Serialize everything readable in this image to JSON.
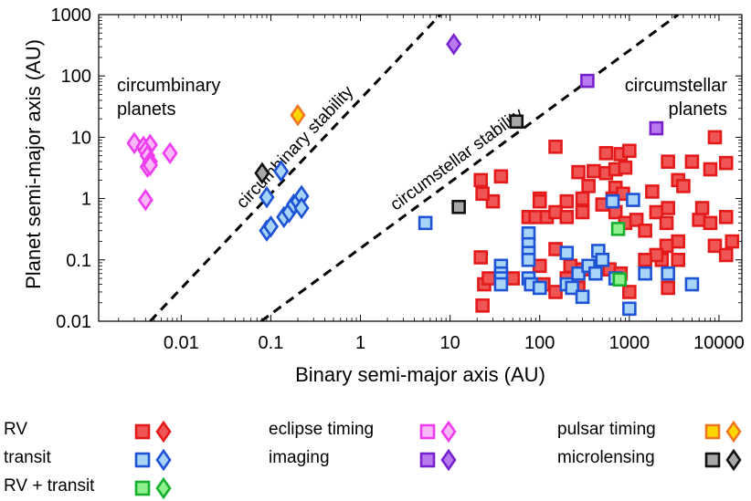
{
  "chart_data": {
    "type": "scatter",
    "xlabel": "Binary semi-major axis (AU)",
    "ylabel": "Planet semi-major axis (AU)",
    "xscale": "log",
    "yscale": "log",
    "xlim": [
      0.0012,
      18000
    ],
    "ylim": [
      0.01,
      1000
    ],
    "xticks": [
      {
        "value": 0.01,
        "label": "0.01"
      },
      {
        "value": 0.1,
        "label": "0.1"
      },
      {
        "value": 1,
        "label": "1"
      },
      {
        "value": 10,
        "label": "10"
      },
      {
        "value": 100,
        "label": "100"
      },
      {
        "value": 1000,
        "label": "1000"
      },
      {
        "value": 10000,
        "label": "10000"
      }
    ],
    "yticks": [
      {
        "value": 0.01,
        "label": "0.01"
      },
      {
        "value": 0.1,
        "label": "0.1"
      },
      {
        "value": 1,
        "label": "1"
      },
      {
        "value": 10,
        "label": "10"
      },
      {
        "value": 100,
        "label": "100"
      },
      {
        "value": 1000,
        "label": "1000"
      }
    ],
    "stability_lines": [
      {
        "name": "circumbinary stability",
        "label": "circumbinary stability",
        "points": [
          [
            0.0045,
            0.01
          ],
          [
            7.8,
            1000
          ]
        ]
      },
      {
        "name": "circumstellar stability",
        "label": "circumstellar stability",
        "points": [
          [
            0.078,
            0.01
          ],
          [
            3500,
            1000
          ]
        ]
      }
    ],
    "region_labels": [
      {
        "text_lines": [
          "circumbinary",
          "planets"
        ],
        "x": 0.0025,
        "y": 60
      },
      {
        "text_lines": [
          "circumstellar",
          "planets"
        ],
        "x": 2500,
        "y": 60
      }
    ],
    "series": [
      {
        "name": "RV circumstellar",
        "method": "RV",
        "marker": "square",
        "fill": "#f05555",
        "edge": "#e41a1a",
        "points": [
          [
            9000,
            10
          ],
          [
            12000,
            3.8
          ],
          [
            550,
            5.5
          ],
          [
            800,
            5.3
          ],
          [
            1000,
            6
          ],
          [
            150,
            7
          ],
          [
            270,
            2.7
          ],
          [
            400,
            2.8
          ],
          [
            550,
            2.6
          ],
          [
            700,
            3
          ],
          [
            900,
            3.2
          ],
          [
            2700,
            4
          ],
          [
            5000,
            4
          ],
          [
            8000,
            3
          ],
          [
            3500,
            2
          ],
          [
            4000,
            1.6
          ],
          [
            1800,
            1.3
          ],
          [
            350,
            1.6
          ],
          [
            300,
            1
          ],
          [
            700,
            1.5
          ],
          [
            200,
            0.9
          ],
          [
            100,
            1
          ],
          [
            650,
            1
          ],
          [
            850,
            1.2
          ],
          [
            100,
            0.9
          ],
          [
            22,
            2
          ],
          [
            37,
            2.3
          ],
          [
            30,
            0.9
          ],
          [
            23,
            1.2
          ],
          [
            75,
            0.5
          ],
          [
            90,
            0.5
          ],
          [
            120,
            0.5
          ],
          [
            150,
            0.6
          ],
          [
            200,
            0.5
          ],
          [
            300,
            0.6
          ],
          [
            500,
            0.8
          ],
          [
            700,
            0.6
          ],
          [
            900,
            0.4
          ],
          [
            1200,
            0.45
          ],
          [
            1500,
            0.3
          ],
          [
            2000,
            0.6
          ],
          [
            2600,
            0.4
          ],
          [
            2700,
            0.7
          ],
          [
            6000,
            0.45
          ],
          [
            6500,
            0.7
          ],
          [
            12000,
            0.5
          ],
          [
            9000,
            0.17
          ],
          [
            12000,
            0.12
          ],
          [
            3500,
            0.2
          ],
          [
            2600,
            0.17
          ],
          [
            2300,
            0.1
          ],
          [
            2000,
            0.12
          ],
          [
            1500,
            0.1
          ],
          [
            22,
            0.11
          ],
          [
            150,
            0.15
          ],
          [
            100,
            0.08
          ],
          [
            220,
            0.08
          ],
          [
            300,
            0.07
          ],
          [
            450,
            0.08
          ],
          [
            600,
            0.07
          ],
          [
            800,
            0.06
          ],
          [
            1000,
            0.03
          ],
          [
            200,
            0.05
          ],
          [
            150,
            0.03
          ],
          [
            50,
            0.05
          ],
          [
            110,
            0.04
          ],
          [
            270,
            0.035
          ],
          [
            23,
            0.018
          ],
          [
            24,
            0.04
          ],
          [
            27,
            0.05
          ],
          [
            2700,
            0.035
          ],
          [
            3500,
            0.1
          ],
          [
            8000,
            0.4
          ],
          [
            14000,
            0.2
          ]
        ]
      },
      {
        "name": "transit circumstellar",
        "method": "transit",
        "marker": "square",
        "fill": "#a8d4f8",
        "edge": "#1f53d6",
        "points": [
          [
            5.3,
            0.4
          ],
          [
            1100,
            0.95
          ],
          [
            650,
            0.9
          ],
          [
            75,
            0.27
          ],
          [
            75,
            0.18
          ],
          [
            75,
            0.13
          ],
          [
            75,
            0.1
          ],
          [
            200,
            0.13
          ],
          [
            450,
            0.14
          ],
          [
            37,
            0.08
          ],
          [
            37,
            0.06
          ],
          [
            37,
            0.05
          ],
          [
            37,
            0.04
          ],
          [
            75,
            0.05
          ],
          [
            80,
            0.04
          ],
          [
            100,
            0.035
          ],
          [
            200,
            0.04
          ],
          [
            230,
            0.035
          ],
          [
            270,
            0.06
          ],
          [
            300,
            0.025
          ],
          [
            350,
            0.08
          ],
          [
            420,
            0.06
          ],
          [
            500,
            0.1
          ],
          [
            700,
            0.05
          ],
          [
            1000,
            0.016
          ],
          [
            1500,
            0.06
          ],
          [
            2700,
            0.06
          ],
          [
            5000,
            0.04
          ]
        ]
      },
      {
        "name": "RV + transit circumstellar",
        "method": "RV + transit",
        "marker": "square",
        "fill": "#8ef08e",
        "edge": "#17b02e",
        "points": [
          [
            750,
            0.32
          ],
          [
            780,
            0.048
          ]
        ]
      },
      {
        "name": "imaging circumstellar",
        "method": "imaging",
        "marker": "square",
        "fill": "#b97af0",
        "edge": "#7722cc",
        "points": [
          [
            340,
            83
          ],
          [
            2000,
            14
          ]
        ]
      },
      {
        "name": "microlensing circumstellar",
        "method": "microlensing",
        "marker": "square",
        "fill": "#a8a8a8",
        "edge": "#111111",
        "points": [
          [
            55,
            18
          ],
          [
            12.5,
            0.73
          ]
        ]
      },
      {
        "name": "transit circumbinary",
        "method": "transit",
        "marker": "diamond",
        "fill": "#a8d4f8",
        "edge": "#1f53d6",
        "points": [
          [
            0.09,
            1.05
          ],
          [
            0.09,
            0.3
          ],
          [
            0.1,
            0.35
          ],
          [
            0.13,
            2.8
          ],
          [
            0.14,
            0.5
          ],
          [
            0.16,
            0.6
          ],
          [
            0.18,
            0.8
          ],
          [
            0.2,
            0.9
          ],
          [
            0.22,
            1.1
          ],
          [
            0.22,
            0.7
          ]
        ]
      },
      {
        "name": "eclipse timing circumbinary",
        "method": "eclipse timing",
        "marker": "diamond",
        "fill": "#f8b8f8",
        "edge": "#ee3cee",
        "points": [
          [
            0.003,
            8
          ],
          [
            0.0038,
            7
          ],
          [
            0.0045,
            7.5
          ],
          [
            0.004,
            6
          ],
          [
            0.0042,
            5
          ],
          [
            0.0045,
            4
          ],
          [
            0.0042,
            3.3
          ],
          [
            0.0045,
            3.5
          ],
          [
            0.0075,
            5.5
          ],
          [
            0.004,
            0.95
          ]
        ]
      },
      {
        "name": "imaging circumbinary",
        "method": "imaging",
        "marker": "diamond",
        "fill": "#b97af0",
        "edge": "#7722cc",
        "points": [
          [
            11,
            330
          ]
        ]
      },
      {
        "name": "pulsar timing circumbinary",
        "method": "pulsar timing",
        "marker": "diamond",
        "fill": "#ffd700",
        "edge": "#ee7722",
        "points": [
          [
            0.2,
            23
          ]
        ]
      },
      {
        "name": "microlensing circumbinary",
        "method": "microlensing",
        "marker": "diamond",
        "fill": "#a8a8a8",
        "edge": "#111111",
        "points": [
          [
            0.08,
            2.6
          ]
        ]
      }
    ]
  },
  "legend": [
    {
      "label": "RV",
      "fill": "#f05555",
      "edge": "#e41a1a"
    },
    {
      "label": "transit",
      "fill": "#a8d4f8",
      "edge": "#1f53d6"
    },
    {
      "label": "RV + transit",
      "fill": "#8ef08e",
      "edge": "#17b02e"
    },
    {
      "label": "eclipse timing",
      "fill": "#f8b8f8",
      "edge": "#ee3cee"
    },
    {
      "label": "imaging",
      "fill": "#b97af0",
      "edge": "#7722cc"
    },
    {
      "label": "pulsar timing",
      "fill": "#ffd700",
      "edge": "#ee7722"
    },
    {
      "label": "microlensing",
      "fill": "#a8a8a8",
      "edge": "#111111"
    }
  ]
}
